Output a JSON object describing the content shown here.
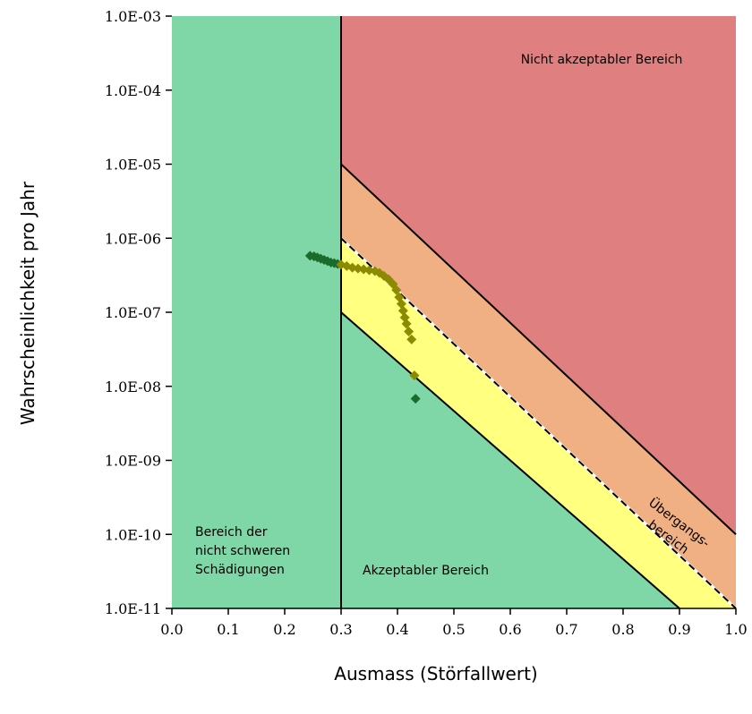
{
  "chart_data": {
    "type": "scatter",
    "xlabel": "Ausmass (Störfallwert)",
    "ylabel": "Wahrscheinlichkeit pro Jahr",
    "xlim": [
      0.0,
      1.0
    ],
    "ylim": [
      1e-11,
      0.001
    ],
    "y_scale": "log",
    "grid": false,
    "x_ticks": [
      "0.0",
      "0.1",
      "0.2",
      "0.3",
      "0.4",
      "0.5",
      "0.6",
      "0.7",
      "0.8",
      "0.9",
      "1.0"
    ],
    "y_ticks": [
      "1.0E-11",
      "1.0E-10",
      "1.0E-09",
      "1.0E-08",
      "1.0E-07",
      "1.0E-06",
      "1.0E-05",
      "1.0E-04",
      "1.0E-03"
    ],
    "colors": {
      "not_serious": "#7fd6a6",
      "acceptable": "#7fd6a6",
      "transition_lower": "#ffff80",
      "transition_upper": "#f0b083",
      "not_acceptable": "#df7f7f",
      "markers_in_green": "#1a6b2c",
      "markers_in_yellow": "#8b8a00"
    },
    "lines": [
      {
        "style": "solid",
        "points": [
          [
            0.3,
            1e-05
          ],
          [
            1.0,
            1e-10
          ]
        ]
      },
      {
        "style": "dashed",
        "points": [
          [
            0.3,
            1e-06
          ],
          [
            1.0,
            1e-11
          ]
        ]
      },
      {
        "style": "solid",
        "points": [
          [
            0.3,
            1e-07
          ],
          [
            0.9,
            1e-11
          ]
        ]
      },
      {
        "style": "solid",
        "points": [
          [
            0.3,
            1e-11
          ],
          [
            0.3,
            0.001
          ]
        ]
      }
    ],
    "series": [
      {
        "values": [
          [
            0.245,
            5.8e-07
          ],
          [
            0.252,
            5.7e-07
          ],
          [
            0.258,
            5.5e-07
          ],
          [
            0.264,
            5.3e-07
          ],
          [
            0.27,
            5.1e-07
          ],
          [
            0.276,
            4.9e-07
          ],
          [
            0.282,
            4.7e-07
          ],
          [
            0.288,
            4.6e-07
          ],
          [
            0.294,
            4.5e-07
          ],
          [
            0.3,
            4.4e-07
          ],
          [
            0.31,
            4.2e-07
          ],
          [
            0.32,
            4e-07
          ],
          [
            0.33,
            3.9e-07
          ],
          [
            0.34,
            3.8e-07
          ],
          [
            0.35,
            3.7e-07
          ],
          [
            0.36,
            3.6e-07
          ],
          [
            0.368,
            3.4e-07
          ],
          [
            0.376,
            3.1e-07
          ],
          [
            0.384,
            2.8e-07
          ],
          [
            0.392,
            2.4e-07
          ],
          [
            0.398,
            2e-07
          ],
          [
            0.403,
            1.6e-07
          ],
          [
            0.407,
            1.3e-07
          ],
          [
            0.41,
            1.05e-07
          ],
          [
            0.413,
            8.5e-08
          ],
          [
            0.416,
            7e-08
          ],
          [
            0.42,
            5.5e-08
          ],
          [
            0.425,
            4.3e-08
          ],
          [
            0.43,
            1.4e-08
          ],
          [
            0.432,
            6.8e-09
          ]
        ]
      }
    ],
    "annotations": {
      "not_acceptable": "Nicht akzeptabler Bereich",
      "not_serious": [
        "Bereich der",
        "nicht schweren",
        "Schädigungen"
      ],
      "acceptable": "Akzeptabler Bereich",
      "transition": [
        "Übergangs-",
        "bereich"
      ]
    }
  }
}
